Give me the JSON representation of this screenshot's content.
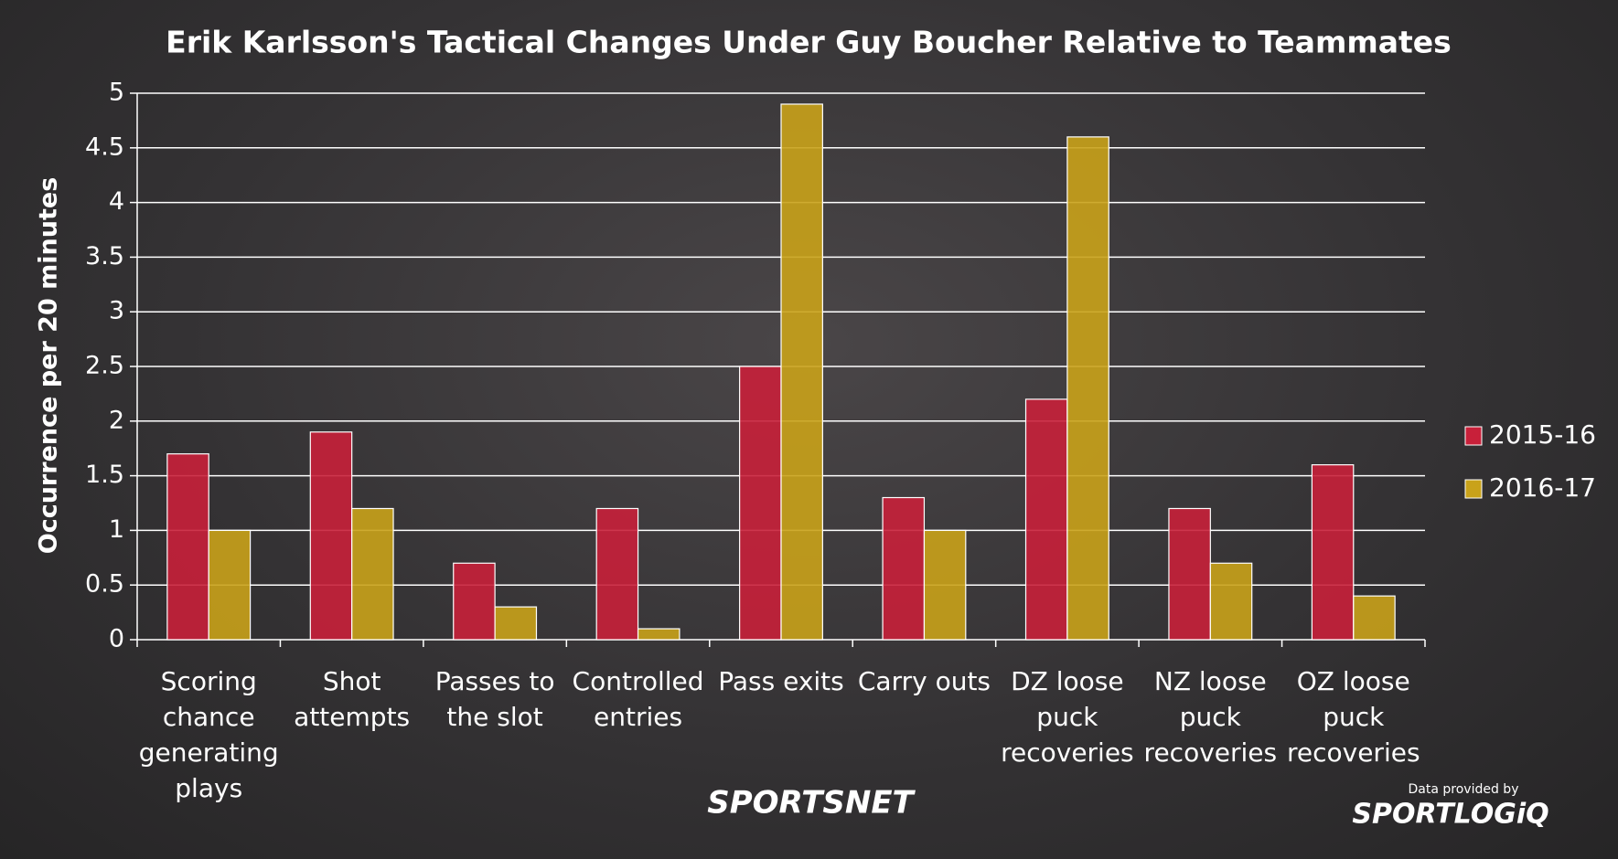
{
  "chart_data": {
    "type": "bar",
    "title": "Erik Karlsson's Tactical Changes Under Guy Boucher Relative to Teammates",
    "y_label": "Occurrence per 20 minutes",
    "categories": [
      "Scoring chance generating plays",
      "Shot attempts",
      "Passes to the slot",
      "Controlled entries",
      "Pass exits",
      "Carry outs",
      "DZ loose puck recoveries",
      "NZ loose puck recoveries",
      "OZ loose puck recoveries"
    ],
    "series": [
      {
        "name": "2015-16",
        "color": "#c8203a",
        "values": [
          1.7,
          1.9,
          0.7,
          1.2,
          2.5,
          1.3,
          2.2,
          1.2,
          1.6
        ]
      },
      {
        "name": "2016-17",
        "color": "#c9a21a",
        "values": [
          1.0,
          1.2,
          0.3,
          0.1,
          4.9,
          1.0,
          4.6,
          0.7,
          0.4
        ]
      }
    ],
    "ylim": [
      0,
      5
    ],
    "yticks": [
      0,
      0.5,
      1,
      1.5,
      2,
      2.5,
      3,
      3.5,
      4,
      4.5,
      5
    ],
    "grid": true,
    "legend": "right",
    "logos": {
      "left": "SPORTSNET",
      "credit": "Data provided by",
      "right": "SPORTLOGiQ"
    }
  }
}
